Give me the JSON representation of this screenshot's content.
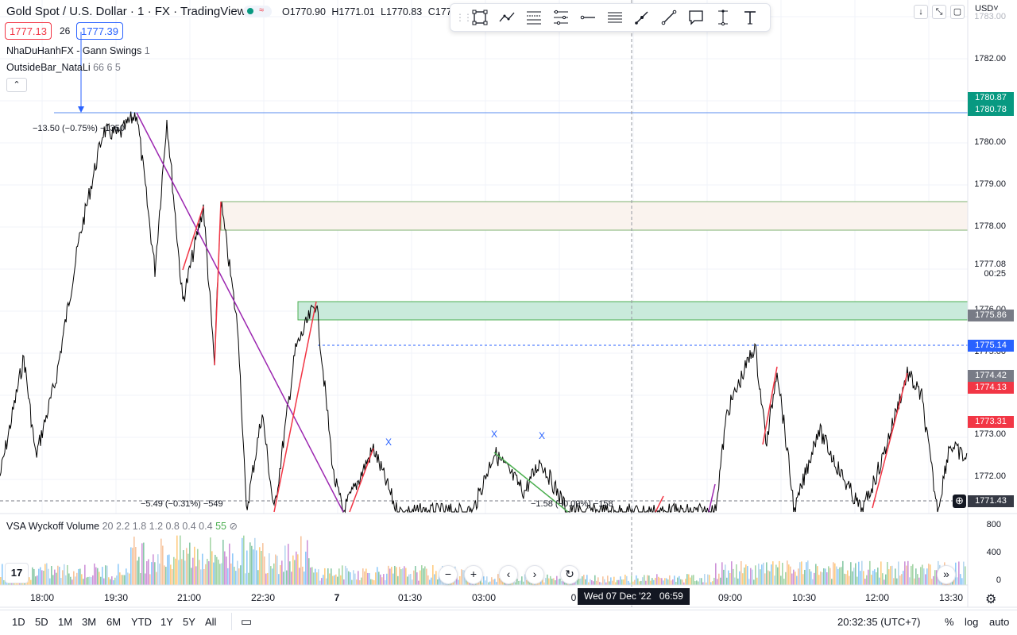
{
  "header": {
    "symbol_title": "Gold Spot / U.S. Dollar · 1 · FX · TradingView",
    "ohlc": {
      "open": "O1770.90",
      "high": "H1771.01",
      "low": "L1770.83",
      "close": "C177"
    },
    "sell_price": "1777.13",
    "spread": "26",
    "buy_price": "1777.39",
    "indicator_1": {
      "name": "NhaDuHanhFX - Gann Swings",
      "params": "1"
    },
    "indicator_2": {
      "name": "OutsideBar_NataLi",
      "params": "66 6 5"
    },
    "collapse_icon": "chevron-up-icon",
    "currency": "USD",
    "window_buttons": [
      "arrow-down-icon",
      "collapse-icon",
      "fullscreen-icon"
    ]
  },
  "toolbar": {
    "tools": [
      "rectangle-icon",
      "path-icon",
      "fib-retracement-icon",
      "fib-channel-icon",
      "horizontal-ray-icon",
      "parallel-channel-icon",
      "trend-angle-icon",
      "trend-line-icon",
      "callout-icon",
      "price-range-icon",
      "text-icon"
    ]
  },
  "price_axis": {
    "labels": [
      "1783.00",
      "1782.00",
      "1781.00",
      "1780.00",
      "1779.00",
      "1778.00",
      "1777.08",
      "00:25",
      "1776.00",
      "1775.00",
      "1773.00",
      "1772.00"
    ],
    "badges": [
      {
        "text": "1780.87",
        "color": "#089981"
      },
      {
        "text": "1780.78",
        "color": "#089981"
      },
      {
        "text": "1775.86",
        "color": "#787b86"
      },
      {
        "text": "1775.14",
        "color": "#2962ff"
      },
      {
        "text": "1774.42",
        "color": "#787b86"
      },
      {
        "text": "1774.13",
        "color": "#f23645"
      },
      {
        "text": "1773.31",
        "color": "#f23645"
      },
      {
        "text": "1771.43",
        "color": "#363a45"
      }
    ]
  },
  "annotations": {
    "measure_top": "−13.50 (−0.75%) −1350",
    "measure_bottom_left": "−5.49 (−0.31%) −549",
    "measure_bottom_right": "−1.58 (−0.09%) −158",
    "x_marks": [
      "X",
      "X",
      "X"
    ]
  },
  "volume": {
    "legend_name": "VSA Wyckoff Volume",
    "legend_params": "20 2.2 1.8 1.2 0.8 0.4 0.4",
    "legend_value": "55",
    "axis_labels": [
      "800",
      "400",
      "0"
    ]
  },
  "time_axis": {
    "labels": [
      "18:00",
      "19:30",
      "21:00",
      "22:30",
      "7",
      "01:30",
      "03:00",
      "0",
      "09:00",
      "10:30",
      "12:00",
      "13:30"
    ],
    "crosshair_date": "Wed 07 Dec '22",
    "crosshair_time": "06:59"
  },
  "navigation": {
    "zoom_out": "−",
    "zoom_in": "+",
    "scroll_left": "‹",
    "scroll_right": "›",
    "reset_icon": "reset-icon",
    "scroll_to_end": "»"
  },
  "bottom_bar": {
    "ranges": [
      "1D",
      "5D",
      "1M",
      "3M",
      "6M",
      "YTD",
      "1Y",
      "5Y",
      "All"
    ],
    "date_range_icon": "calendar-icon",
    "clock": "20:32:35 (UTC+7)",
    "percent": "%",
    "log": "log",
    "auto": "auto"
  },
  "colors": {
    "up": "#089981",
    "down": "#f23645",
    "accent": "#2962ff",
    "purple_line": "#9c27b0",
    "zone_green": "#b7e4d0",
    "zone_beige": "#faf3ee"
  }
}
